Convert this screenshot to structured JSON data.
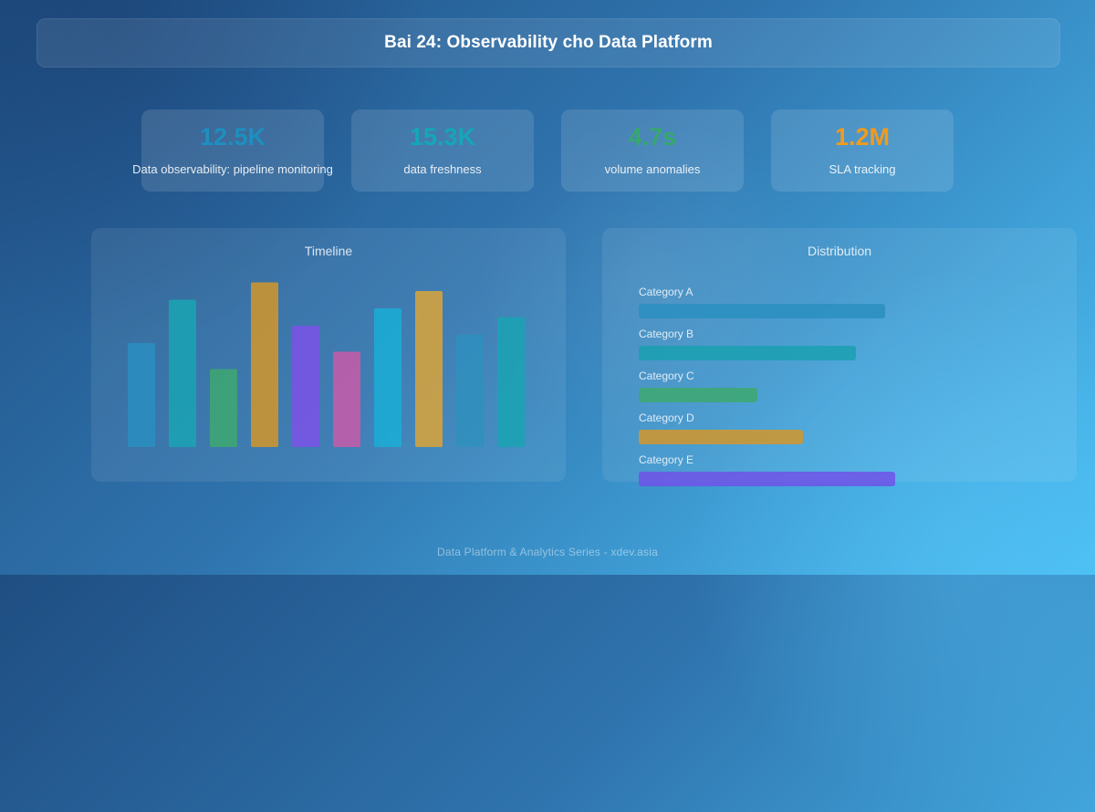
{
  "header": {
    "title": "Bai 24: Observability cho Data Platform"
  },
  "stats": [
    {
      "value": "12.5K",
      "label": "Data observability: pipeline monitoring",
      "color": "#1d8fc0"
    },
    {
      "value": "15.3K",
      "label": "data freshness",
      "color": "#14a7b7"
    },
    {
      "value": "4.7s",
      "label": "volume anomalies",
      "color": "#36a86c"
    },
    {
      "value": "1.2M",
      "label": "SLA tracking",
      "color": "#f29a1c"
    }
  ],
  "chart_data": [
    {
      "type": "bar",
      "title": "Timeline",
      "values": [
        60,
        85,
        45,
        95,
        70,
        55,
        80,
        90,
        65,
        75
      ],
      "colors": [
        "#2a8fbf",
        "#1aa3b3",
        "#3da870",
        "#d4962a",
        "#7b52e6",
        "#c95aa8",
        "#1aaed6",
        "#dba43a",
        "#2f8fbd",
        "#1aa3b3"
      ],
      "ylim": [
        0,
        100
      ],
      "grid": false
    },
    {
      "type": "bar",
      "orientation": "horizontal",
      "title": "Distribution",
      "categories": [
        "Category A",
        "Category B",
        "Category C",
        "Category D",
        "Category E"
      ],
      "values": [
        75,
        66,
        36,
        50,
        78
      ],
      "colors": [
        "#2a8fbf",
        "#1aa0b0",
        "#3da870",
        "#d4962a",
        "#7052e8"
      ],
      "xlim": [
        0,
        100
      ],
      "grid": false
    }
  ],
  "footer": {
    "text": "Data Platform & Analytics Series - xdev.asia"
  }
}
